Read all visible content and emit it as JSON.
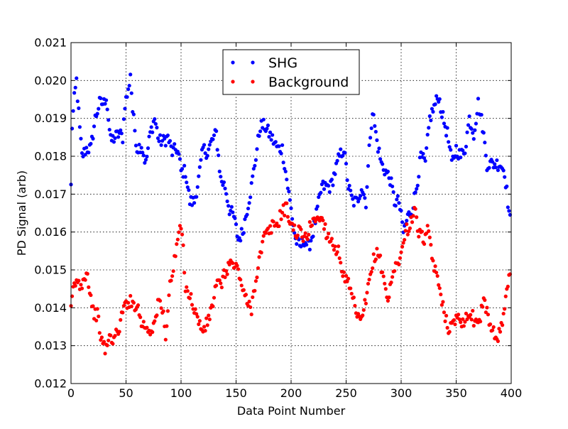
{
  "chart_data": {
    "type": "scatter",
    "title": "",
    "xlabel": "Data Point Number",
    "ylabel": "PD Signal (arb)",
    "xlim": [
      0,
      400
    ],
    "ylim": [
      0.012,
      0.021
    ],
    "xticks": [
      "0",
      "50",
      "100",
      "150",
      "200",
      "250",
      "300",
      "350",
      "400"
    ],
    "yticks": [
      "0.012",
      "0.013",
      "0.014",
      "0.015",
      "0.016",
      "0.017",
      "0.018",
      "0.019",
      "0.020",
      "0.021"
    ],
    "grid": true,
    "legend": {
      "placement": "top-center",
      "entries": [
        "SHG",
        "Background"
      ]
    },
    "series": [
      {
        "name": "SHG",
        "color": "#0000ff",
        "anchors": [
          [
            0,
            0.0172
          ],
          [
            1,
            0.0188
          ],
          [
            3,
            0.0195
          ],
          [
            5,
            0.02
          ],
          [
            8,
            0.0187
          ],
          [
            10,
            0.018
          ],
          [
            14,
            0.0182
          ],
          [
            18,
            0.0182
          ],
          [
            22,
            0.019
          ],
          [
            26,
            0.0194
          ],
          [
            30,
            0.0194
          ],
          [
            32,
            0.0196
          ],
          [
            36,
            0.0184
          ],
          [
            40,
            0.0185
          ],
          [
            44,
            0.0186
          ],
          [
            47,
            0.0185
          ],
          [
            49,
            0.0194
          ],
          [
            52,
            0.0197
          ],
          [
            54,
            0.0202
          ],
          [
            56,
            0.0192
          ],
          [
            60,
            0.0182
          ],
          [
            64,
            0.0183
          ],
          [
            68,
            0.0178
          ],
          [
            72,
            0.0186
          ],
          [
            76,
            0.019
          ],
          [
            80,
            0.0184
          ],
          [
            84,
            0.0184
          ],
          [
            88,
            0.0185
          ],
          [
            92,
            0.0181
          ],
          [
            96,
            0.0182
          ],
          [
            98,
            0.018
          ],
          [
            100,
            0.0176
          ],
          [
            104,
            0.0176
          ],
          [
            108,
            0.0168
          ],
          [
            112,
            0.0168
          ],
          [
            116,
            0.0174
          ],
          [
            120,
            0.0182
          ],
          [
            124,
            0.0181
          ],
          [
            128,
            0.0184
          ],
          [
            132,
            0.0186
          ],
          [
            136,
            0.0174
          ],
          [
            140,
            0.0172
          ],
          [
            144,
            0.0166
          ],
          [
            148,
            0.0164
          ],
          [
            152,
            0.0158
          ],
          [
            156,
            0.016
          ],
          [
            160,
            0.0166
          ],
          [
            164,
            0.0172
          ],
          [
            168,
            0.018
          ],
          [
            172,
            0.0188
          ],
          [
            176,
            0.0188
          ],
          [
            180,
            0.0186
          ],
          [
            184,
            0.0184
          ],
          [
            188,
            0.0182
          ],
          [
            192,
            0.0182
          ],
          [
            196,
            0.0174
          ],
          [
            200,
            0.0166
          ],
          [
            204,
            0.0158
          ],
          [
            208,
            0.0156
          ],
          [
            212,
            0.0158
          ],
          [
            216,
            0.0156
          ],
          [
            220,
            0.016
          ],
          [
            224,
            0.0166
          ],
          [
            228,
            0.0172
          ],
          [
            232,
            0.0172
          ],
          [
            236,
            0.0172
          ],
          [
            240,
            0.0176
          ],
          [
            244,
            0.018
          ],
          [
            248,
            0.0182
          ],
          [
            252,
            0.0172
          ],
          [
            256,
            0.0168
          ],
          [
            260,
            0.0168
          ],
          [
            264,
            0.0172
          ],
          [
            268,
            0.0168
          ],
          [
            272,
            0.0186
          ],
          [
            274,
            0.0192
          ],
          [
            278,
            0.0184
          ],
          [
            282,
            0.0178
          ],
          [
            286,
            0.0176
          ],
          [
            290,
            0.0174
          ],
          [
            294,
            0.0168
          ],
          [
            298,
            0.0168
          ],
          [
            302,
            0.016
          ],
          [
            306,
            0.0164
          ],
          [
            310,
            0.0166
          ],
          [
            314,
            0.0172
          ],
          [
            318,
            0.018
          ],
          [
            322,
            0.0178
          ],
          [
            326,
            0.019
          ],
          [
            330,
            0.0193
          ],
          [
            334,
            0.0196
          ],
          [
            338,
            0.019
          ],
          [
            342,
            0.0186
          ],
          [
            346,
            0.0178
          ],
          [
            350,
            0.0182
          ],
          [
            354,
            0.018
          ],
          [
            358,
            0.0182
          ],
          [
            362,
            0.019
          ],
          [
            366,
            0.0186
          ],
          [
            370,
            0.0194
          ],
          [
            374,
            0.0188
          ],
          [
            378,
            0.0178
          ],
          [
            382,
            0.0178
          ],
          [
            386,
            0.0178
          ],
          [
            390,
            0.0178
          ],
          [
            394,
            0.0176
          ],
          [
            397,
            0.0168
          ],
          [
            399,
            0.0163
          ]
        ]
      },
      {
        "name": "Background",
        "color": "#ff0000",
        "anchors": [
          [
            0,
            0.0139
          ],
          [
            2,
            0.0145
          ],
          [
            5,
            0.0147
          ],
          [
            8,
            0.0146
          ],
          [
            11,
            0.0147
          ],
          [
            14,
            0.015
          ],
          [
            17,
            0.0145
          ],
          [
            20,
            0.0139
          ],
          [
            24,
            0.0138
          ],
          [
            28,
            0.0131
          ],
          [
            31,
            0.0129
          ],
          [
            35,
            0.0132
          ],
          [
            40,
            0.0132
          ],
          [
            44,
            0.0135
          ],
          [
            48,
            0.014
          ],
          [
            52,
            0.0142
          ],
          [
            56,
            0.0141
          ],
          [
            60,
            0.0141
          ],
          [
            64,
            0.0136
          ],
          [
            68,
            0.0135
          ],
          [
            72,
            0.0134
          ],
          [
            76,
            0.0136
          ],
          [
            80,
            0.0142
          ],
          [
            84,
            0.0138
          ],
          [
            86,
            0.0133
          ],
          [
            90,
            0.0146
          ],
          [
            94,
            0.0152
          ],
          [
            98,
            0.016
          ],
          [
            101,
            0.016
          ],
          [
            104,
            0.0146
          ],
          [
            108,
            0.0143
          ],
          [
            112,
            0.014
          ],
          [
            116,
            0.0136
          ],
          [
            120,
            0.0134
          ],
          [
            124,
            0.0136
          ],
          [
            128,
            0.014
          ],
          [
            132,
            0.0146
          ],
          [
            136,
            0.0146
          ],
          [
            140,
            0.0149
          ],
          [
            144,
            0.0152
          ],
          [
            148,
            0.0151
          ],
          [
            152,
            0.015
          ],
          [
            156,
            0.0145
          ],
          [
            160,
            0.0141
          ],
          [
            164,
            0.014
          ],
          [
            168,
            0.0148
          ],
          [
            172,
            0.0154
          ],
          [
            176,
            0.0159
          ],
          [
            180,
            0.016
          ],
          [
            184,
            0.0162
          ],
          [
            188,
            0.0162
          ],
          [
            192,
            0.0166
          ],
          [
            196,
            0.0166
          ],
          [
            200,
            0.0162
          ],
          [
            204,
            0.016
          ],
          [
            208,
            0.016
          ],
          [
            212,
            0.0158
          ],
          [
            216,
            0.016
          ],
          [
            220,
            0.0164
          ],
          [
            224,
            0.0163
          ],
          [
            228,
            0.0164
          ],
          [
            232,
            0.016
          ],
          [
            236,
            0.0158
          ],
          [
            240,
            0.0156
          ],
          [
            244,
            0.0154
          ],
          [
            248,
            0.0148
          ],
          [
            252,
            0.0146
          ],
          [
            256,
            0.0142
          ],
          [
            260,
            0.0138
          ],
          [
            264,
            0.0136
          ],
          [
            268,
            0.0142
          ],
          [
            272,
            0.0148
          ],
          [
            276,
            0.0154
          ],
          [
            280,
            0.0154
          ],
          [
            284,
            0.0148
          ],
          [
            288,
            0.0142
          ],
          [
            292,
            0.0148
          ],
          [
            296,
            0.0152
          ],
          [
            300,
            0.0154
          ],
          [
            304,
            0.016
          ],
          [
            308,
            0.0162
          ],
          [
            312,
            0.0166
          ],
          [
            316,
            0.016
          ],
          [
            320,
            0.0158
          ],
          [
            324,
            0.016
          ],
          [
            328,
            0.0154
          ],
          [
            332,
            0.0148
          ],
          [
            336,
            0.0144
          ],
          [
            340,
            0.0138
          ],
          [
            344,
            0.0134
          ],
          [
            348,
            0.0136
          ],
          [
            352,
            0.0139
          ],
          [
            356,
            0.0136
          ],
          [
            360,
            0.0138
          ],
          [
            364,
            0.0138
          ],
          [
            368,
            0.0136
          ],
          [
            372,
            0.0138
          ],
          [
            376,
            0.0142
          ],
          [
            380,
            0.0136
          ],
          [
            384,
            0.0134
          ],
          [
            388,
            0.0132
          ],
          [
            392,
            0.0136
          ],
          [
            395,
            0.0142
          ],
          [
            397,
            0.0146
          ],
          [
            399,
            0.015
          ]
        ]
      }
    ]
  }
}
